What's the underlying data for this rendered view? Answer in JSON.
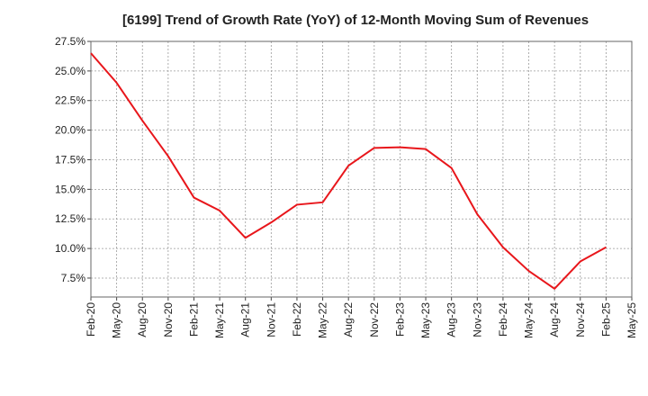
{
  "chart_data": {
    "type": "line",
    "title": "[6199]  Trend of Growth Rate (YoY) of 12-Month Moving Sum of Revenues",
    "xlabel": "",
    "ylabel": "",
    "ylim": [
      5.9,
      27.5
    ],
    "grid": true,
    "line_color": "#e8161b",
    "x_ticks": [
      "Feb-20",
      "May-20",
      "Aug-20",
      "Nov-20",
      "Feb-21",
      "May-21",
      "Aug-21",
      "Nov-21",
      "Feb-22",
      "May-22",
      "Aug-22",
      "Nov-22",
      "Feb-23",
      "May-23",
      "Aug-23",
      "Nov-23",
      "Feb-24",
      "May-24",
      "Aug-24",
      "Nov-24",
      "Feb-25",
      "May-25"
    ],
    "y_ticks": [
      {
        "value": 7.5,
        "label": "7.5%"
      },
      {
        "value": 10.0,
        "label": "10.0%"
      },
      {
        "value": 12.5,
        "label": "12.5%"
      },
      {
        "value": 15.0,
        "label": "15.0%"
      },
      {
        "value": 17.5,
        "label": "17.5%"
      },
      {
        "value": 20.0,
        "label": "20.0%"
      },
      {
        "value": 22.5,
        "label": "22.5%"
      },
      {
        "value": 25.0,
        "label": "25.0%"
      },
      {
        "value": 27.5,
        "label": "27.5%"
      }
    ],
    "series": [
      {
        "x": [
          "Feb-20",
          "May-20",
          "Aug-20",
          "Nov-20",
          "Feb-21",
          "May-21",
          "Aug-21",
          "Nov-21",
          "Feb-22",
          "May-22",
          "Aug-22",
          "Nov-22",
          "Feb-23",
          "May-23",
          "Aug-23",
          "Nov-23",
          "Feb-24",
          "May-24",
          "Aug-24",
          "Nov-24",
          "Feb-25"
        ],
        "values": [
          26.5,
          24.0,
          20.8,
          17.8,
          14.3,
          13.2,
          10.9,
          12.2,
          13.7,
          13.9,
          17.0,
          18.5,
          18.55,
          18.4,
          16.8,
          12.9,
          10.1,
          8.1,
          6.6,
          8.9,
          10.1
        ]
      }
    ]
  }
}
